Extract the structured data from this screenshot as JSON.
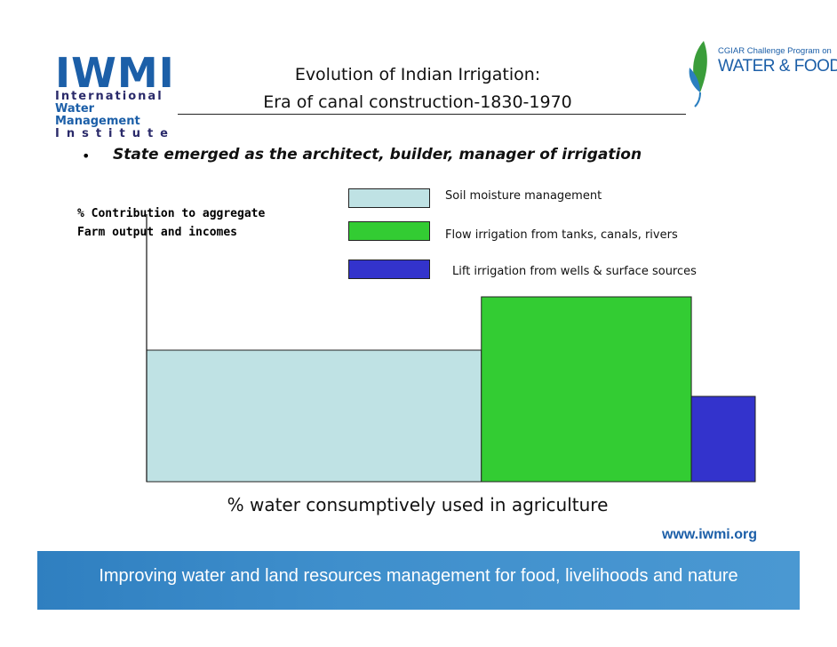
{
  "logos": {
    "iwmi": {
      "letters": "IWMI",
      "line1": "International",
      "line2": "Water Management",
      "line3": "Institute"
    },
    "cgiar": {
      "line1": "CGIAR Challenge Program on",
      "line2": "WATER & FOOD"
    }
  },
  "title": {
    "line1": "Evolution of Indian Irrigation:",
    "line2": "Era of canal construction-1830-1970"
  },
  "bullet": {
    "text": "State emerged as the architect, builder, manager of irrigation"
  },
  "footer": {
    "url": "www.iwmi.org",
    "tagline": "Improving water and land resources management for food, livelihoods and nature"
  },
  "colors": {
    "soil": "#bfe2e4",
    "flow": "#33cc33",
    "lift": "#3333cc",
    "brand_blue": "#1c5fa8",
    "footer_band": "#3b8ccb"
  },
  "chart_data": {
    "type": "bar",
    "ylabel_lines": [
      "% Contribution to aggregate",
      "Farm output and incomes"
    ],
    "xlabel": "%  water consumptively used in agriculture",
    "legend_position": "top-right",
    "grid": false,
    "series": [
      {
        "name": "Soil moisture management",
        "x_start": 0,
        "x_end": 55,
        "height": 37,
        "color": "#bfe2e4"
      },
      {
        "name": "Flow irrigation from tanks, canals, rivers",
        "x_start": 55,
        "x_end": 89.5,
        "height": 52,
        "color": "#33cc33"
      },
      {
        "name": "Lift irrigation from wells & surface sources",
        "x_start": 89.5,
        "x_end": 100,
        "height": 24,
        "color": "#3333cc"
      }
    ],
    "xlim": [
      0,
      100
    ],
    "ylim": [
      0,
      100
    ]
  }
}
